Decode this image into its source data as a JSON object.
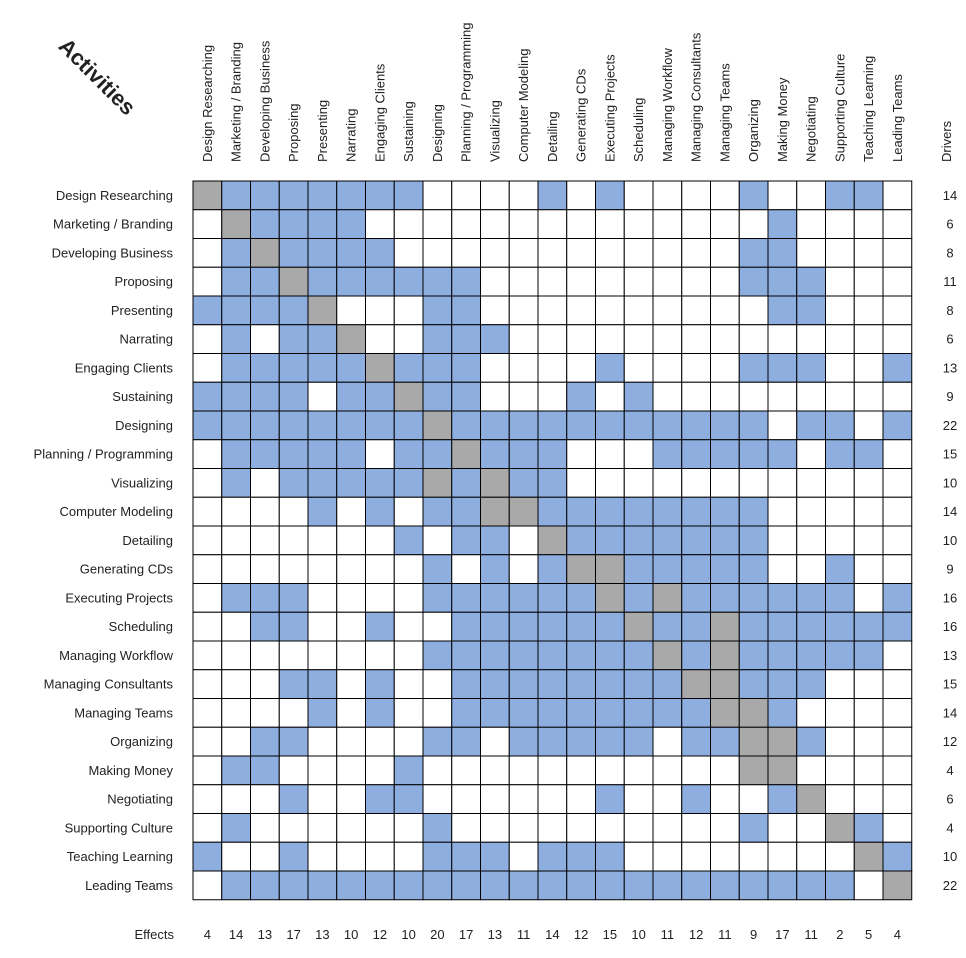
{
  "title": "Activities",
  "activities": [
    "Design Researching",
    "Marketing / Branding",
    "Developing Business",
    "Proposing",
    "Presenting",
    "Narrating",
    "Engaging Clients",
    "Sustaining",
    "Designing",
    "Planning / Programming",
    "Visualizing",
    "Computer Modeling",
    "Detailing",
    "Generating CDs",
    "Executing Projects",
    "Scheduling",
    "Managing Workflow",
    "Managing Consultants",
    "Managing Teams",
    "Organizing",
    "Making Money",
    "Negotiating",
    "Supporting Culture",
    "Teaching Learning",
    "Leading Teams"
  ],
  "drivers_label": "Drivers",
  "effects_label": "Effects",
  "drivers": [
    14,
    6,
    8,
    11,
    8,
    6,
    13,
    9,
    22,
    15,
    10,
    14,
    10,
    9,
    16,
    16,
    13,
    15,
    14,
    12,
    4,
    6,
    4,
    10,
    22
  ],
  "effects": [
    4,
    14,
    13,
    17,
    13,
    10,
    12,
    10,
    20,
    17,
    13,
    11,
    14,
    12,
    15,
    10,
    11,
    12,
    11,
    9,
    17,
    11,
    2,
    5,
    4
  ],
  "colors": {
    "filled": "#8faee0",
    "diagonal": "#a9a9a9",
    "empty": "#ffffff",
    "grid": "#000000"
  },
  "matrix": [
    "X11111110000101000010011",
    "0X111100000000000000100",
    "01X1111000000000000110000",
    "011X1111110000000001110000",
    "1111X000110000000000110000",
    "01011X0011100000000000000",
    "011111X11100001000011100 1",
    "1111011X1100010100000000000",
    "11111111X11111111111011011",
    "011111011X111000111110110000",
    "01011111X111100000000000000",
    "0000101011X1111111110000000",
    "000000010110X111111100000000",
    "00000000101011X1111100100000",
    "0111000011111111X11111101000",
    "001100100111111111X111111000",
    "000000001111111111X111110000",
    "000110100111111111X11100000",
    "0000101001111111111X1000000",
    "00110000110111110111X1000000",
    "0110000100000000000X100000",
    "000100110000001001001X000000",
    "0100000010000000000100X10000",
    "1001000011101110000000001X1",
    "0111111111111111111111101X"
  ]
}
